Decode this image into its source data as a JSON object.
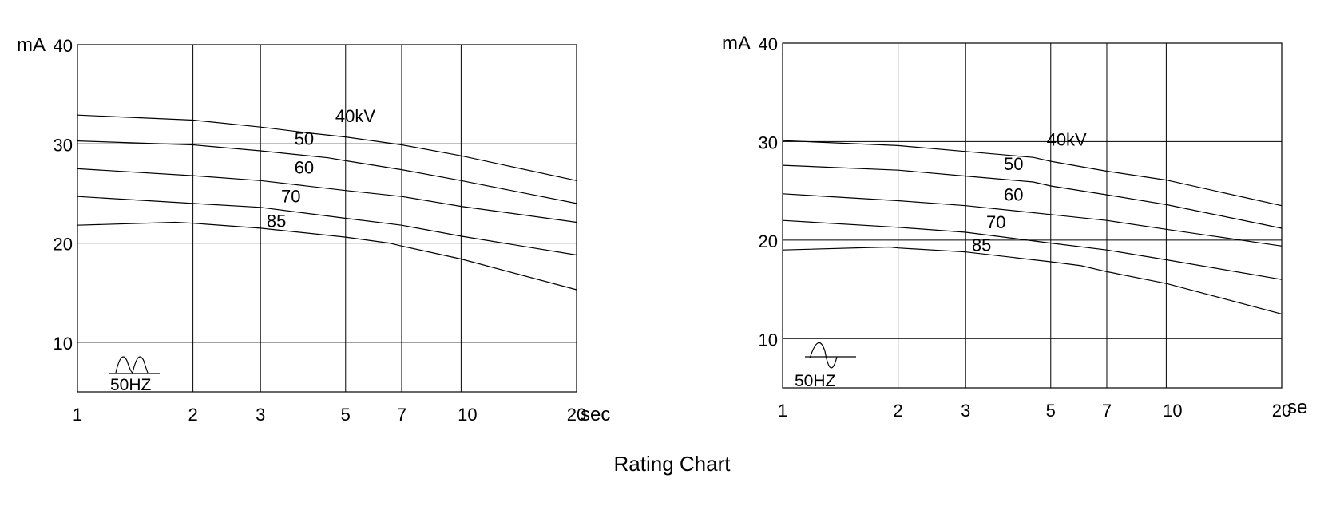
{
  "title": "Rating Chart",
  "chart_data": [
    {
      "type": "line",
      "ylabel": "mA",
      "xlabel": "sec",
      "x_scale": "log",
      "xlim": [
        1,
        20
      ],
      "ylim": [
        5,
        40
      ],
      "x_ticks": [
        "1",
        "2",
        "3",
        "5",
        "7",
        "10",
        "20"
      ],
      "y_ticks": [
        "40",
        "30",
        "20",
        "10"
      ],
      "grid": true,
      "annotation": "50HZ",
      "waveform_icon": "full-wave-rectified-icon",
      "series": [
        {
          "name": "40kV",
          "points": [
            [
              1,
              32.9
            ],
            [
              2,
              32.4
            ],
            [
              3,
              31.7
            ],
            [
              4,
              31.1
            ],
            [
              5,
              30.7
            ],
            [
              7,
              29.9
            ],
            [
              10,
              28.8
            ],
            [
              20,
              26.3
            ]
          ]
        },
        {
          "name": "50",
          "points": [
            [
              1,
              30.3
            ],
            [
              2,
              29.9
            ],
            [
              3,
              29.3
            ],
            [
              4.5,
              28.6
            ],
            [
              5,
              28.3
            ],
            [
              7,
              27.4
            ],
            [
              10,
              26.3
            ],
            [
              20,
              24.0
            ]
          ]
        },
        {
          "name": "60",
          "points": [
            [
              1,
              27.5
            ],
            [
              2,
              26.8
            ],
            [
              3,
              26.3
            ],
            [
              5,
              25.3
            ],
            [
              7,
              24.7
            ],
            [
              10,
              23.7
            ],
            [
              20,
              22.1
            ]
          ]
        },
        {
          "name": "70",
          "points": [
            [
              1,
              24.7
            ],
            [
              2,
              24.0
            ],
            [
              3,
              23.6
            ],
            [
              5,
              22.5
            ],
            [
              7,
              21.8
            ],
            [
              10,
              20.7
            ],
            [
              20,
              18.8
            ]
          ]
        },
        {
          "name": "85",
          "points": [
            [
              1,
              21.8
            ],
            [
              1.8,
              22.1
            ],
            [
              2,
              22.0
            ],
            [
              3,
              21.5
            ],
            [
              5,
              20.6
            ],
            [
              6.5,
              20.0
            ],
            [
              7,
              19.7
            ],
            [
              10,
              18.4
            ],
            [
              20,
              15.3
            ]
          ]
        }
      ]
    },
    {
      "type": "line",
      "ylabel": "mA",
      "xlabel": "se",
      "x_scale": "log",
      "xlim": [
        1,
        20
      ],
      "ylim": [
        5,
        40
      ],
      "x_ticks": [
        "1",
        "2",
        "3",
        "5",
        "7",
        "10",
        "20"
      ],
      "y_ticks": [
        "40",
        "30",
        "20",
        "10"
      ],
      "grid": true,
      "annotation": "50HZ",
      "waveform_icon": "sine-wave-icon",
      "series": [
        {
          "name": "40kV",
          "points": [
            [
              1,
              30.1
            ],
            [
              2,
              29.6
            ],
            [
              3,
              29.0
            ],
            [
              4.5,
              28.4
            ],
            [
              5,
              28.0
            ],
            [
              7,
              27.0
            ],
            [
              10,
              26.1
            ],
            [
              20,
              23.5
            ]
          ]
        },
        {
          "name": "50",
          "points": [
            [
              1,
              27.6
            ],
            [
              2,
              27.1
            ],
            [
              3,
              26.5
            ],
            [
              4.5,
              25.9
            ],
            [
              5,
              25.5
            ],
            [
              7,
              24.6
            ],
            [
              10,
              23.6
            ],
            [
              20,
              21.2
            ]
          ]
        },
        {
          "name": "60",
          "points": [
            [
              1,
              24.7
            ],
            [
              2,
              24.0
            ],
            [
              3,
              23.5
            ],
            [
              5,
              22.6
            ],
            [
              7,
              22.0
            ],
            [
              10,
              21.1
            ],
            [
              20,
              19.4
            ]
          ]
        },
        {
          "name": "70",
          "points": [
            [
              1,
              22.0
            ],
            [
              2,
              21.3
            ],
            [
              3,
              20.8
            ],
            [
              5,
              19.7
            ],
            [
              7,
              19.0
            ],
            [
              10,
              18.0
            ],
            [
              20,
              16.0
            ]
          ]
        },
        {
          "name": "85",
          "points": [
            [
              1,
              19.0
            ],
            [
              1.9,
              19.3
            ],
            [
              2,
              19.2
            ],
            [
              3,
              18.8
            ],
            [
              5,
              17.8
            ],
            [
              6,
              17.4
            ],
            [
              7,
              16.8
            ],
            [
              10,
              15.6
            ],
            [
              20,
              12.5
            ]
          ]
        }
      ]
    }
  ]
}
